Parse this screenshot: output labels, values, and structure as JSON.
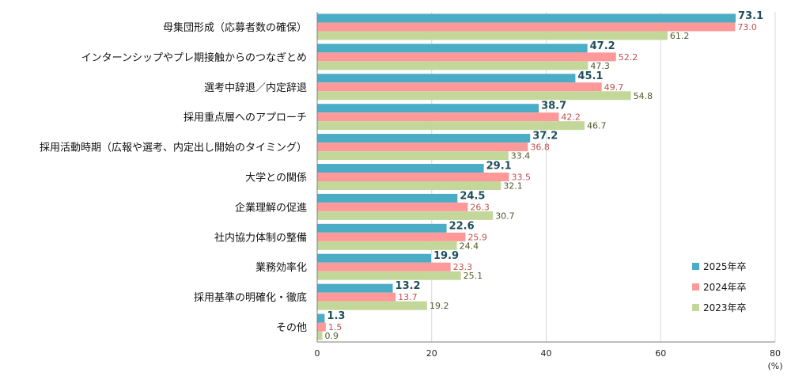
{
  "chart_data": {
    "type": "bar",
    "orientation": "horizontal",
    "categories": [
      "母集団形成（応募者数の確保）",
      "インターンシップやプレ期接触からのつなぎとめ",
      "選考中辞退／内定辞退",
      "採用重点層へのアプローチ",
      "採用活動時期（広報や選考、内定出し開始のタイミング）",
      "大学との関係",
      "企業理解の促進",
      "社内協力体制の整備",
      "業務効率化",
      "採用基準の明確化・徹底",
      "その他"
    ],
    "series": [
      {
        "name": "2025年卒",
        "color": "#4bacc6",
        "values": [
          73.1,
          47.2,
          45.1,
          38.7,
          37.2,
          29.1,
          24.5,
          22.6,
          19.9,
          13.2,
          1.3
        ]
      },
      {
        "name": "2024年卒",
        "color": "#ff9999",
        "values": [
          73.0,
          52.2,
          49.7,
          42.2,
          36.8,
          33.5,
          26.3,
          25.9,
          23.3,
          13.7,
          1.5
        ]
      },
      {
        "name": "2023年卒",
        "color": "#c4d79b",
        "values": [
          61.2,
          47.3,
          54.8,
          46.7,
          33.4,
          32.1,
          30.7,
          24.4,
          25.1,
          19.2,
          0.9
        ]
      }
    ],
    "xlim": [
      0,
      80
    ],
    "x_ticks": [
      0,
      20,
      40,
      60,
      80
    ],
    "x_unit_label": "(%)",
    "legend_position": "right",
    "grid": true
  }
}
